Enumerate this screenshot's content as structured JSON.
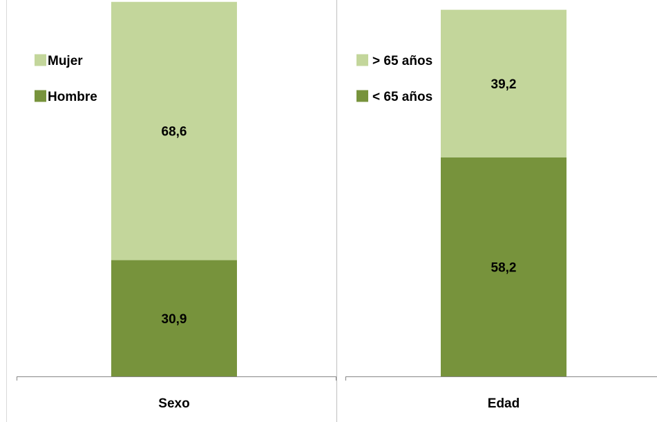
{
  "chart_data": [
    {
      "type": "bar",
      "stacked": true,
      "categories": [
        "Sexo"
      ],
      "series": [
        {
          "name": "Hombre",
          "values": [
            30.9
          ],
          "label": "30,9",
          "color": "#77933c"
        },
        {
          "name": "Mujer",
          "values": [
            68.6
          ],
          "label": "68,6",
          "color": "#c3d69b"
        }
      ],
      "legend_order": [
        "Mujer",
        "Hombre"
      ],
      "ylim": [
        0,
        100
      ],
      "grid": false,
      "legend_position": "top-left"
    },
    {
      "type": "bar",
      "stacked": true,
      "categories": [
        "Edad"
      ],
      "series": [
        {
          "name": "< 65 años",
          "values": [
            58.2
          ],
          "label": "58,2",
          "color": "#77933c"
        },
        {
          "name": "> 65 años",
          "values": [
            39.2
          ],
          "label": "39,2",
          "color": "#c3d69b"
        }
      ],
      "legend_order": [
        "> 65 años",
        "< 65 años"
      ],
      "ylim": [
        0,
        100
      ],
      "grid": false,
      "legend_position": "top-left"
    }
  ]
}
